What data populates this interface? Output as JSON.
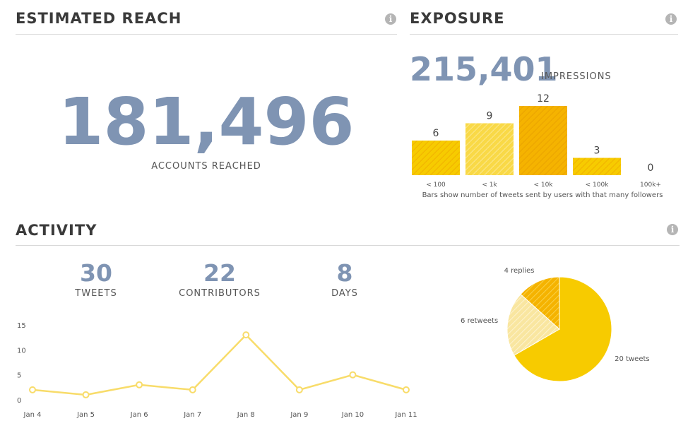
{
  "reach": {
    "title": "ESTIMATED REACH",
    "value": "181,496",
    "caption": "ACCOUNTS REACHED"
  },
  "exposure": {
    "title": "EXPOSURE",
    "value": "215,401",
    "caption": "IMPRESSIONS",
    "footnote": "Bars show number of tweets sent by users with that many followers"
  },
  "activity": {
    "title": "ACTIVITY",
    "stats": [
      {
        "value": "30",
        "label": "TWEETS"
      },
      {
        "value": "22",
        "label": "CONTRIBUTORS"
      },
      {
        "value": "8",
        "label": "DAYS"
      }
    ]
  },
  "info_icon_glyph": "i",
  "colors": {
    "accent_blue": "#7f94b3",
    "yellow": "#f7cb00",
    "yellow_light": "#f7e08a",
    "yellow_dark": "#f0b000",
    "line": "#f8dc6a"
  },
  "chart_data": [
    {
      "type": "bar",
      "categories": [
        "< 100",
        "< 1k",
        "< 10k",
        "< 100k",
        "100k+"
      ],
      "values": [
        6,
        9,
        12,
        3,
        0
      ],
      "ylim": [
        0,
        12
      ]
    },
    {
      "type": "line",
      "x": [
        "Jan 4",
        "Jan 5",
        "Jan 6",
        "Jan 7",
        "Jan 8",
        "Jan 9",
        "Jan 10",
        "Jan 11"
      ],
      "values": [
        2,
        1,
        3,
        2,
        13,
        2,
        5,
        2
      ],
      "ylim": [
        0,
        15
      ],
      "yticks": [
        0,
        5,
        10,
        15
      ],
      "grid": false
    },
    {
      "type": "pie",
      "labels": [
        "20 tweets",
        "6 retweets",
        "4 replies"
      ],
      "values": [
        20,
        6,
        4
      ]
    }
  ]
}
